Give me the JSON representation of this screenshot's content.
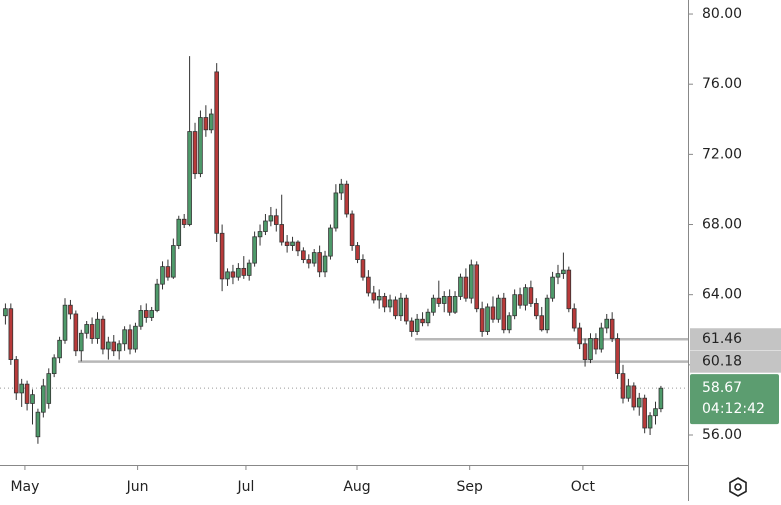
{
  "chart_data": {
    "type": "candlestick",
    "up_color": "#4e9a6a",
    "down_color": "#b83a3a",
    "ohlc_fields": [
      "open",
      "high",
      "low",
      "close"
    ],
    "ohlc": [
      [
        62.8,
        63.5,
        62.3,
        63.2
      ],
      [
        63.2,
        63.5,
        60.0,
        60.3
      ],
      [
        60.3,
        60.5,
        58.0,
        58.4
      ],
      [
        58.4,
        59.2,
        57.6,
        58.9
      ],
      [
        58.9,
        59.1,
        57.4,
        57.8
      ],
      [
        57.8,
        58.6,
        56.6,
        58.3
      ],
      [
        55.9,
        57.5,
        55.5,
        57.3
      ],
      [
        57.3,
        59.2,
        57.0,
        58.8
      ],
      [
        57.8,
        59.8,
        57.5,
        59.5
      ],
      [
        59.5,
        60.6,
        59.3,
        60.4
      ],
      [
        60.4,
        61.6,
        60.1,
        61.4
      ],
      [
        61.4,
        63.8,
        61.2,
        63.4
      ],
      [
        63.4,
        63.7,
        62.6,
        62.9
      ],
      [
        62.9,
        63.1,
        60.5,
        60.8
      ],
      [
        60.8,
        62.0,
        60.2,
        61.8
      ],
      [
        61.8,
        62.5,
        61.5,
        62.3
      ],
      [
        62.3,
        62.7,
        61.2,
        61.5
      ],
      [
        61.5,
        63.0,
        61.2,
        62.6
      ],
      [
        62.6,
        62.8,
        60.6,
        60.9
      ],
      [
        60.9,
        61.6,
        60.3,
        61.3
      ],
      [
        61.3,
        61.7,
        60.5,
        60.8
      ],
      [
        60.8,
        61.4,
        60.3,
        61.2
      ],
      [
        61.2,
        62.2,
        60.8,
        62.0
      ],
      [
        62.0,
        62.3,
        60.6,
        60.9
      ],
      [
        60.9,
        62.4,
        60.7,
        62.2
      ],
      [
        62.2,
        63.4,
        62.0,
        63.1
      ],
      [
        63.1,
        63.5,
        62.4,
        62.7
      ],
      [
        62.7,
        63.3,
        62.5,
        63.1
      ],
      [
        63.1,
        64.9,
        63.0,
        64.6
      ],
      [
        64.6,
        65.9,
        64.3,
        65.6
      ],
      [
        65.6,
        66.0,
        64.8,
        65.0
      ],
      [
        65.0,
        67.2,
        64.9,
        66.8
      ],
      [
        66.8,
        68.5,
        66.6,
        68.3
      ],
      [
        68.3,
        68.6,
        67.8,
        68.0
      ],
      [
        68.0,
        77.6,
        67.9,
        73.3
      ],
      [
        73.3,
        73.8,
        70.6,
        70.9
      ],
      [
        70.9,
        74.5,
        70.7,
        74.1
      ],
      [
        74.1,
        74.8,
        73.0,
        73.4
      ],
      [
        73.4,
        74.6,
        73.2,
        74.3
      ],
      [
        76.7,
        77.2,
        67.0,
        67.5
      ],
      [
        67.5,
        68.0,
        64.2,
        64.9
      ],
      [
        64.9,
        65.5,
        64.5,
        65.3
      ],
      [
        65.3,
        65.7,
        64.6,
        65.0
      ],
      [
        65.0,
        65.8,
        64.8,
        65.5
      ],
      [
        65.5,
        66.2,
        64.9,
        65.1
      ],
      [
        65.1,
        66.0,
        64.8,
        65.8
      ],
      [
        65.8,
        67.6,
        65.6,
        67.3
      ],
      [
        67.3,
        68.0,
        66.8,
        67.6
      ],
      [
        67.6,
        68.6,
        67.4,
        68.2
      ],
      [
        68.2,
        69.0,
        67.9,
        68.5
      ],
      [
        68.5,
        68.9,
        67.6,
        68.0
      ],
      [
        68.0,
        69.7,
        66.8,
        67.0
      ],
      [
        67.0,
        67.4,
        66.4,
        66.8
      ],
      [
        66.8,
        67.3,
        66.5,
        67.0
      ],
      [
        67.0,
        67.1,
        66.2,
        66.5
      ],
      [
        66.5,
        66.7,
        65.8,
        66.0
      ],
      [
        66.0,
        66.3,
        65.5,
        65.8
      ],
      [
        65.8,
        66.6,
        65.6,
        66.4
      ],
      [
        66.4,
        66.8,
        65.0,
        65.3
      ],
      [
        65.3,
        66.5,
        65.0,
        66.2
      ],
      [
        66.2,
        68.0,
        66.0,
        67.8
      ],
      [
        67.8,
        70.3,
        67.6,
        69.8
      ],
      [
        69.8,
        70.6,
        69.4,
        70.3
      ],
      [
        70.3,
        70.5,
        68.4,
        68.6
      ],
      [
        68.6,
        68.8,
        66.5,
        66.8
      ],
      [
        66.8,
        67.0,
        65.8,
        66.0
      ],
      [
        66.0,
        66.3,
        64.8,
        65.0
      ],
      [
        65.0,
        65.4,
        63.9,
        64.1
      ],
      [
        64.1,
        64.5,
        63.5,
        63.7
      ],
      [
        63.7,
        64.3,
        63.2,
        63.9
      ],
      [
        63.9,
        64.1,
        63.0,
        63.3
      ],
      [
        63.3,
        64.0,
        63.0,
        63.7
      ],
      [
        63.7,
        63.9,
        62.6,
        62.8
      ],
      [
        62.8,
        64.1,
        62.5,
        63.8
      ],
      [
        63.8,
        64.0,
        62.3,
        62.5
      ],
      [
        62.5,
        62.7,
        61.6,
        61.9
      ],
      [
        61.9,
        62.9,
        61.7,
        62.6
      ],
      [
        62.6,
        63.0,
        62.2,
        62.4
      ],
      [
        62.4,
        63.2,
        62.2,
        63.0
      ],
      [
        63.0,
        64.0,
        62.8,
        63.8
      ],
      [
        63.8,
        64.8,
        63.3,
        63.5
      ],
      [
        63.5,
        64.2,
        63.0,
        63.9
      ],
      [
        63.9,
        64.3,
        62.8,
        63.0
      ],
      [
        63.0,
        64.2,
        62.9,
        63.9
      ],
      [
        63.9,
        65.2,
        63.7,
        65.0
      ],
      [
        65.0,
        65.5,
        63.6,
        63.8
      ],
      [
        63.8,
        66.0,
        63.5,
        65.7
      ],
      [
        65.7,
        65.9,
        63.0,
        63.2
      ],
      [
        63.2,
        63.6,
        61.6,
        61.9
      ],
      [
        61.9,
        63.5,
        61.7,
        63.3
      ],
      [
        63.3,
        63.9,
        62.4,
        62.6
      ],
      [
        62.6,
        64.0,
        62.4,
        63.8
      ],
      [
        63.8,
        64.1,
        61.8,
        62.0
      ],
      [
        62.0,
        63.0,
        61.8,
        62.8
      ],
      [
        62.8,
        64.3,
        62.6,
        64.0
      ],
      [
        64.0,
        64.4,
        63.2,
        63.4
      ],
      [
        63.4,
        64.6,
        63.1,
        64.4
      ],
      [
        64.4,
        64.8,
        63.3,
        63.5
      ],
      [
        63.5,
        63.8,
        62.6,
        62.8
      ],
      [
        62.8,
        63.3,
        61.9,
        62.0
      ],
      [
        62.0,
        64.0,
        61.8,
        63.8
      ],
      [
        63.8,
        65.3,
        63.6,
        65.0
      ],
      [
        65.0,
        65.7,
        64.6,
        65.2
      ],
      [
        65.2,
        66.4,
        64.9,
        65.4
      ],
      [
        65.4,
        65.6,
        63.0,
        63.2
      ],
      [
        63.2,
        63.5,
        61.9,
        62.1
      ],
      [
        62.1,
        62.4,
        60.9,
        61.2
      ],
      [
        61.2,
        61.5,
        59.9,
        60.3
      ],
      [
        60.3,
        61.8,
        60.1,
        61.5
      ],
      [
        61.5,
        61.8,
        60.6,
        60.9
      ],
      [
        60.9,
        62.4,
        60.7,
        62.1
      ],
      [
        62.1,
        62.9,
        61.8,
        62.6
      ],
      [
        62.6,
        63.0,
        61.3,
        61.5
      ],
      [
        61.5,
        61.8,
        59.2,
        59.5
      ],
      [
        59.5,
        60.0,
        57.8,
        58.1
      ],
      [
        58.1,
        59.2,
        57.9,
        58.8
      ],
      [
        58.8,
        59.0,
        57.4,
        57.6
      ],
      [
        57.6,
        58.4,
        57.1,
        58.1
      ],
      [
        58.1,
        58.3,
        56.1,
        56.4
      ],
      [
        56.4,
        57.3,
        56.0,
        57.1
      ],
      [
        57.1,
        57.9,
        56.6,
        57.5
      ],
      [
        57.5,
        58.8,
        57.3,
        58.67
      ]
    ],
    "xlim": [
      -1,
      126
    ],
    "xticks": [
      {
        "value": 3.6,
        "label": "May"
      },
      {
        "value": 24.4,
        "label": "Jun"
      },
      {
        "value": 44.4,
        "label": "Jul"
      },
      {
        "value": 64.9,
        "label": "Aug"
      },
      {
        "value": 85.7,
        "label": "Sep"
      },
      {
        "value": 106.6,
        "label": "Oct"
      }
    ],
    "ylim": [
      54.29,
      80.8
    ],
    "yticks": [
      {
        "value": 56,
        "label": "56.00"
      },
      {
        "value": 60,
        "label": "60.00"
      },
      {
        "value": 64,
        "label": "64.00"
      },
      {
        "value": 68,
        "label": "68.00"
      },
      {
        "value": 72,
        "label": "72.00"
      },
      {
        "value": 76,
        "label": "76.00"
      },
      {
        "value": 80,
        "label": "80.00"
      }
    ],
    "levels": [
      {
        "value": 61.46,
        "x_start": 75.6,
        "color": "#b8b8b8"
      },
      {
        "value": 60.18,
        "x_start": 13.4,
        "color": "#b8b8b8"
      }
    ],
    "last_price": {
      "value": 58.67,
      "countdown": "04:12:42",
      "color": "#5c9d70"
    }
  }
}
